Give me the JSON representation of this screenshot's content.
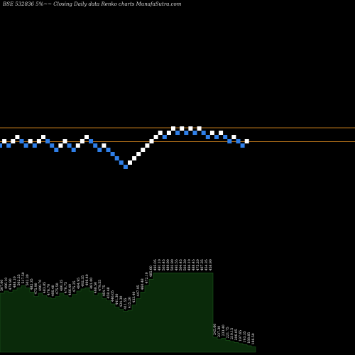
{
  "header": {
    "title": "BSE 532836  5%~~  Closing Daily data  Renko  charts MunafaSutra.com"
  },
  "colors": {
    "background": "#000000",
    "up_brick": "#ffffff",
    "down_brick": "#2f7fe8",
    "reference_line": "#b8741a",
    "volume_fill": "#0a2a0a",
    "volume_edge": "#1d5a1d"
  },
  "chart_data": {
    "type": "renko",
    "title": "BSE 532836  5%~~  Closing Daily data  Renko  charts MunafaSutra.com",
    "reference_lines": 2,
    "bricks": [
      {
        "level": 4,
        "dir": "down"
      },
      {
        "level": 5,
        "dir": "up"
      },
      {
        "level": 4,
        "dir": "down"
      },
      {
        "level": 5,
        "dir": "up"
      },
      {
        "level": 6,
        "dir": "up"
      },
      {
        "level": 5,
        "dir": "down"
      },
      {
        "level": 4,
        "dir": "down"
      },
      {
        "level": 5,
        "dir": "up"
      },
      {
        "level": 4,
        "dir": "down"
      },
      {
        "level": 5,
        "dir": "up"
      },
      {
        "level": 6,
        "dir": "up"
      },
      {
        "level": 5,
        "dir": "down"
      },
      {
        "level": 4,
        "dir": "down"
      },
      {
        "level": 3,
        "dir": "down"
      },
      {
        "level": 4,
        "dir": "up"
      },
      {
        "level": 5,
        "dir": "up"
      },
      {
        "level": 4,
        "dir": "down"
      },
      {
        "level": 3,
        "dir": "down"
      },
      {
        "level": 4,
        "dir": "up"
      },
      {
        "level": 5,
        "dir": "up"
      },
      {
        "level": 6,
        "dir": "up"
      },
      {
        "level": 5,
        "dir": "down"
      },
      {
        "level": 4,
        "dir": "down"
      },
      {
        "level": 3,
        "dir": "down"
      },
      {
        "level": 4,
        "dir": "up"
      },
      {
        "level": 3,
        "dir": "down"
      },
      {
        "level": 2,
        "dir": "down"
      },
      {
        "level": 1,
        "dir": "down"
      },
      {
        "level": 0,
        "dir": "down"
      },
      {
        "level": -1,
        "dir": "down"
      },
      {
        "level": 0,
        "dir": "up"
      },
      {
        "level": 1,
        "dir": "up"
      },
      {
        "level": 2,
        "dir": "up"
      },
      {
        "level": 3,
        "dir": "up"
      },
      {
        "level": 4,
        "dir": "up"
      },
      {
        "level": 5,
        "dir": "up"
      },
      {
        "level": 6,
        "dir": "up"
      },
      {
        "level": 7,
        "dir": "up"
      },
      {
        "level": 6,
        "dir": "down"
      },
      {
        "level": 7,
        "dir": "up"
      },
      {
        "level": 8,
        "dir": "up"
      },
      {
        "level": 7,
        "dir": "down"
      },
      {
        "level": 8,
        "dir": "up"
      },
      {
        "level": 7,
        "dir": "down"
      },
      {
        "level": 8,
        "dir": "up"
      },
      {
        "level": 7,
        "dir": "down"
      },
      {
        "level": 8,
        "dir": "up"
      },
      {
        "level": 7,
        "dir": "down"
      },
      {
        "level": 6,
        "dir": "down"
      },
      {
        "level": 7,
        "dir": "up"
      },
      {
        "level": 6,
        "dir": "down"
      },
      {
        "level": 7,
        "dir": "up"
      },
      {
        "level": 6,
        "dir": "down"
      },
      {
        "level": 5,
        "dir": "down"
      },
      {
        "level": 6,
        "dir": "up"
      },
      {
        "level": 5,
        "dir": "down"
      },
      {
        "level": 4,
        "dir": "down"
      },
      {
        "level": 5,
        "dir": "up"
      }
    ],
    "volume_labels": [
      "507.00",
      "496.10",
      "479.90",
      "488.10",
      "502.25",
      "517.50",
      "502.30",
      "482.35",
      "475.90",
      "490.70",
      "483.85",
      "476.70",
      "466.40",
      "475.50",
      "480.35",
      "470.75",
      "466.40",
      "475.25",
      "484.95",
      "492.35",
      "496.40",
      "481.00",
      "468.50",
      "479.55",
      "464.75",
      "458.48",
      "446.05",
      "441.30",
      "424.30",
      "411.55",
      "415.20",
      "433.40",
      "447.95",
      "460.48",
      "472.10",
      "485.60",
      "495.05",
      "491.10",
      "505.45",
      "489.90",
      "502.90",
      "495.55",
      "504.45",
      "503.30",
      "494.10",
      "488.45",
      "475.20",
      "467.35",
      "454.35",
      "458.90",
      "245.60",
      "237.30",
      "233.40",
      "221.75",
      "210.15",
      "206.05",
      "197.65",
      "193.35",
      "188.85",
      "186.50"
    ],
    "volume_levels": [
      0.55,
      0.57,
      0.56,
      0.58,
      0.6,
      0.62,
      0.6,
      0.56,
      0.52,
      0.55,
      0.53,
      0.51,
      0.5,
      0.52,
      0.55,
      0.53,
      0.51,
      0.54,
      0.57,
      0.59,
      0.6,
      0.57,
      0.53,
      0.55,
      0.5,
      0.48,
      0.45,
      0.42,
      0.4,
      0.38,
      0.39,
      0.44,
      0.5,
      0.56,
      0.62,
      0.68,
      0.74,
      0.74,
      0.74,
      0.74,
      0.74,
      0.74,
      0.74,
      0.74,
      0.74,
      0.74,
      0.74,
      0.74,
      0.74,
      0.74,
      0.14,
      0.12,
      0.13,
      0.11,
      0.1,
      0.09,
      0.08,
      0.07,
      0.06,
      0.05
    ]
  }
}
